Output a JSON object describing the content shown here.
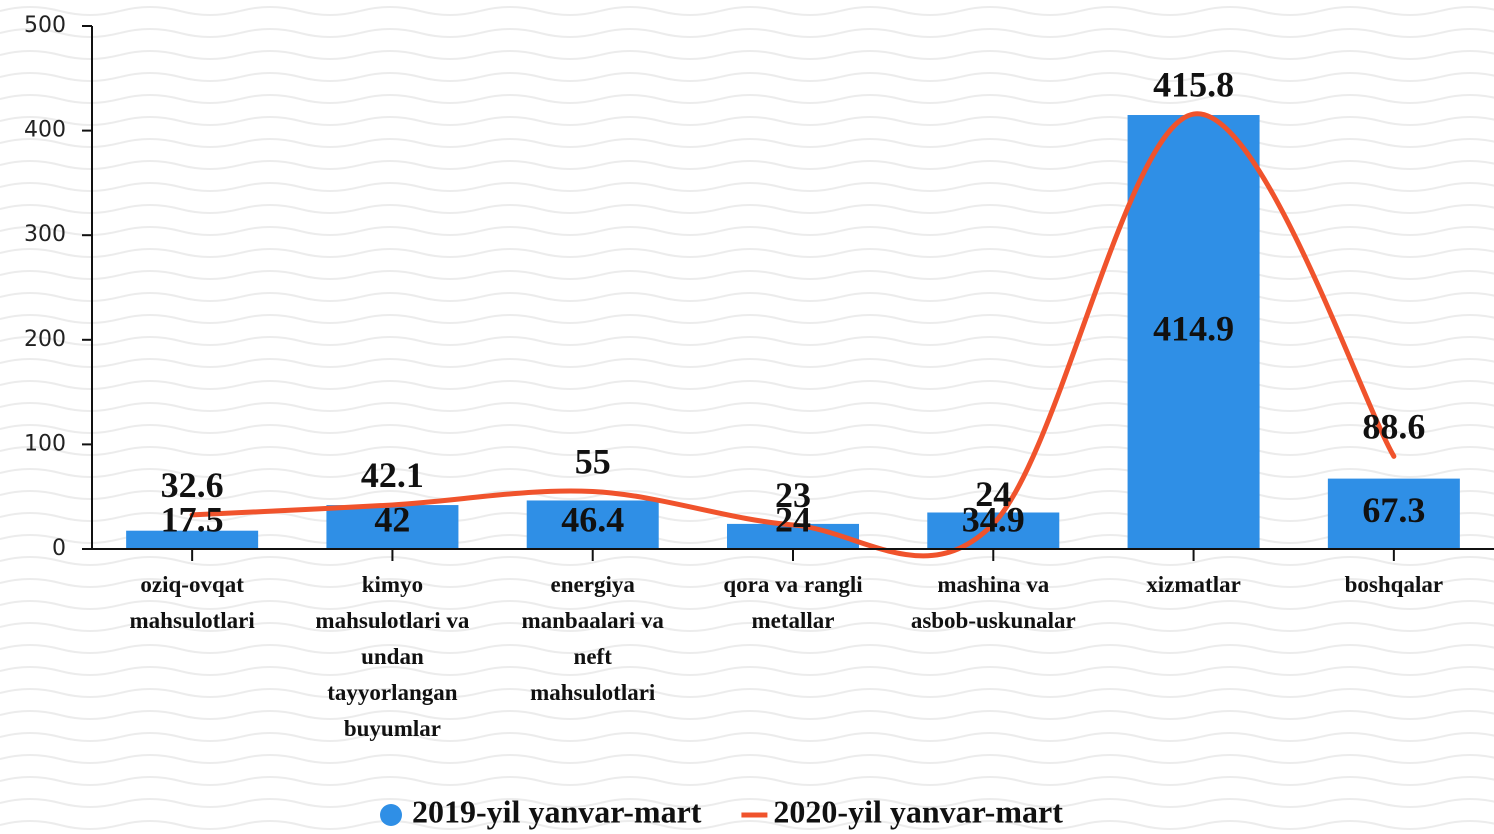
{
  "chart_data": {
    "type": "bar",
    "categories": [
      "oziq-ovqat mahsulotlari",
      "kimyo mahsulotlari va undan tayyorlangan buyumlar",
      "energiya manbaalari va neft mahsulotlari",
      "qora va rangli metallar",
      "mashina va asbob-uskunalar",
      "xizmatlar",
      "boshqalar"
    ],
    "series": [
      {
        "name": "2019-yil yanvar-mart",
        "color": "#2f8fe6",
        "type": "bar",
        "values": [
          17.5,
          42,
          46.4,
          24,
          34.9,
          414.9,
          67.3
        ]
      },
      {
        "name": "2020-yil yanvar-mart",
        "color": "#f0532c",
        "type": "line",
        "values": [
          32.6,
          42.1,
          55,
          23,
          24,
          415.8,
          88.6
        ]
      }
    ],
    "ylim": [
      0,
      500
    ],
    "yticks": [
      0,
      100,
      200,
      300,
      400,
      500
    ],
    "legend": "bottom"
  }
}
